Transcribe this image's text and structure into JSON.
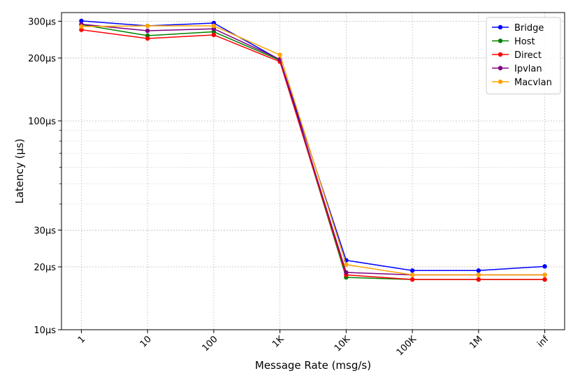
{
  "chart_data": {
    "type": "line",
    "xlabel": "Message Rate (msg/s)",
    "ylabel": "Latency (µs)",
    "y_scale": "log",
    "ylim": [
      10,
      330
    ],
    "grid": true,
    "legend_position": "top-right",
    "categories": [
      "1",
      "10",
      "100",
      "1K",
      "10K",
      "100K",
      "1M",
      "inf"
    ],
    "y_tick_labels": [
      {
        "value": 10,
        "label": "10µs"
      },
      {
        "value": 20,
        "label": "20µs"
      },
      {
        "value": 30,
        "label": "30µs"
      },
      {
        "value": 100,
        "label": "100µs"
      },
      {
        "value": 200,
        "label": "200µs"
      },
      {
        "value": 300,
        "label": "300µs"
      }
    ],
    "series": [
      {
        "name": "Bridge",
        "color": "#0000ff",
        "values": [
          301,
          285,
          294,
          196,
          21.5,
          19.2,
          19.2,
          20.1
        ]
      },
      {
        "name": "Host",
        "color": "#008000",
        "values": [
          289,
          256,
          267,
          195,
          17.8,
          17.4,
          17.4,
          17.4
        ]
      },
      {
        "name": "Direct",
        "color": "#ff0000",
        "values": [
          273,
          248,
          258,
          192,
          18.3,
          17.4,
          17.4,
          17.4
        ]
      },
      {
        "name": "Ipvlan",
        "color": "#800080",
        "values": [
          290,
          270,
          276,
          197,
          18.8,
          18.3,
          18.3,
          18.3
        ]
      },
      {
        "name": "Macvlan",
        "color": "#ffa500",
        "values": [
          283,
          285,
          285,
          207,
          20.5,
          18.3,
          18.3,
          18.3
        ]
      }
    ]
  }
}
